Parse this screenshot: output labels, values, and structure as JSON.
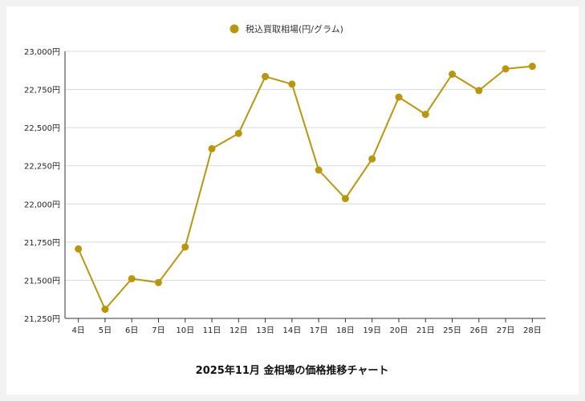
{
  "chart_data": {
    "type": "line",
    "title": "2025年11月 金相場の価格推移チャート",
    "legend": {
      "position": "top-center"
    },
    "series": [
      {
        "name": "税込買取相場(円/グラム)",
        "values": [
          21705,
          21310,
          21510,
          21485,
          21718,
          22362,
          22462,
          22835,
          22785,
          22222,
          22035,
          22295,
          22700,
          22587,
          22850,
          22743,
          22885,
          22902
        ]
      }
    ],
    "categories": [
      "4日",
      "5日",
      "6日",
      "7日",
      "10日",
      "11日",
      "12日",
      "13日",
      "14日",
      "17日",
      "18日",
      "19日",
      "20日",
      "21日",
      "25日",
      "26日",
      "27日",
      "28日"
    ],
    "yticks": [
      "21,250円",
      "21,500円",
      "21,750円",
      "22,000円",
      "22,250円",
      "22,500円",
      "22,750円",
      "23,000円"
    ],
    "ylim": [
      21250,
      23000
    ],
    "grid": true,
    "colors": {
      "line": "#b8960f",
      "grid": "#d9d9d9",
      "axis": "#333333"
    }
  }
}
